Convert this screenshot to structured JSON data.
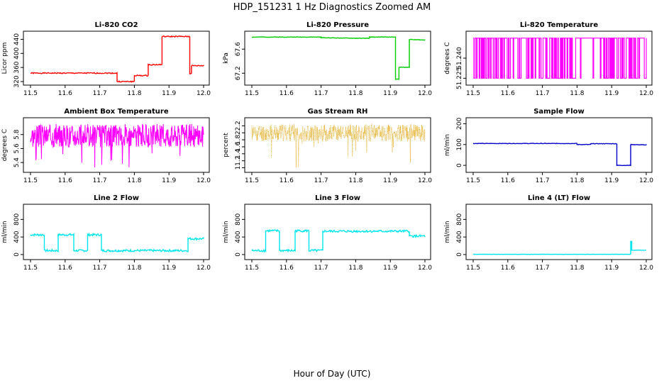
{
  "title": "HDP_151231  1 Hz Diagnostics Zoomed AM",
  "xlabel": "Hour of Day (UTC)",
  "chart_data": [
    {
      "id": "co2",
      "type": "line",
      "title": "Li-820 CO2",
      "ylabel": "Licor ppm",
      "color": "#ff0000",
      "xlim": [
        11.5,
        12.0
      ],
      "xticks": [
        "11.5",
        "11.6",
        "11.7",
        "11.8",
        "11.9",
        "12.0"
      ],
      "ylim": [
        318,
        455
      ],
      "yticks": [
        320,
        360,
        400,
        440
      ],
      "steps": [
        [
          11.5,
          344
        ],
        [
          11.75,
          344
        ],
        [
          11.75,
          320
        ],
        [
          11.8,
          320
        ],
        [
          11.8,
          337
        ],
        [
          11.84,
          337
        ],
        [
          11.84,
          368
        ],
        [
          11.88,
          368
        ],
        [
          11.88,
          448
        ],
        [
          11.96,
          448
        ],
        [
          11.96,
          343
        ],
        [
          11.965,
          343
        ],
        [
          11.965,
          365
        ],
        [
          12.0,
          365
        ]
      ],
      "noise": 1.5
    },
    {
      "id": "pressure",
      "type": "line",
      "title": "Li-820 Pressure",
      "ylabel": "kPa",
      "color": "#00cc00",
      "xlim": [
        11.5,
        12.0
      ],
      "xticks": [
        "11.5",
        "11.6",
        "11.7",
        "11.8",
        "11.9",
        "12.0"
      ],
      "ylim": [
        67.05,
        67.85
      ],
      "yticks": [
        67.2,
        67.6
      ],
      "steps": [
        [
          11.5,
          67.8
        ],
        [
          11.7,
          67.8
        ],
        [
          11.7,
          67.79
        ],
        [
          11.8,
          67.78
        ],
        [
          11.84,
          67.78
        ],
        [
          11.84,
          67.8
        ],
        [
          11.915,
          67.8
        ],
        [
          11.915,
          67.1
        ],
        [
          11.925,
          67.1
        ],
        [
          11.925,
          67.3
        ],
        [
          11.955,
          67.3
        ],
        [
          11.955,
          67.76
        ],
        [
          12.0,
          67.75
        ]
      ],
      "noise": 0.004
    },
    {
      "id": "temperature",
      "type": "line",
      "title": "Li-820 Temperature",
      "ylabel": "degrees C",
      "color": "#ff00ff",
      "xlim": [
        11.5,
        12.0
      ],
      "xticks": [
        "11.5",
        "11.6",
        "11.7",
        "11.8",
        "11.9",
        "12.0"
      ],
      "ylim": [
        51.222,
        51.258
      ],
      "yticks": [
        51.225,
        51.24
      ],
      "ytick_labels": [
        "51.225",
        "51.240"
      ],
      "binary": [
        51.225,
        51.255
      ],
      "density": 0.35,
      "seed": 7
    },
    {
      "id": "ambient",
      "type": "line",
      "title": "Ambient Box Temperature",
      "ylabel": "degrees C",
      "color": "#ff00ff",
      "xlim": [
        11.5,
        12.0
      ],
      "xticks": [
        "11.5",
        "11.6",
        "11.7",
        "11.8",
        "11.9",
        "12.0"
      ],
      "ylim": [
        5.3,
        6.0
      ],
      "yticks": [
        5.4,
        5.6,
        5.8
      ],
      "band": [
        5.62,
        5.95
      ],
      "spike_low": 5.32,
      "seed": 3
    },
    {
      "id": "rh",
      "type": "scatter",
      "title": "Gas Stream RH",
      "ylabel": "percent",
      "color": "#e0a000",
      "xlim": [
        11.5,
        12.0
      ],
      "xticks": [
        "11.5",
        "11.6",
        "11.7",
        "11.8",
        "11.9",
        "12.0"
      ],
      "ylim": [
        0.95,
        2.35
      ],
      "yticks": [
        1.0,
        1.2,
        1.4,
        1.6,
        1.8,
        2.0,
        2.2
      ],
      "band": [
        1.75,
        2.25
      ],
      "spike_low": 1.0,
      "seed": 11
    },
    {
      "id": "sample_flow",
      "type": "line",
      "title": "Sample Flow",
      "ylabel": "ml/min",
      "color": "#0000cc",
      "xlim": [
        11.5,
        12.0
      ],
      "xticks": [
        "11.5",
        "11.6",
        "11.7",
        "11.8",
        "11.9",
        "12.0"
      ],
      "ylim": [
        -20,
        215
      ],
      "yticks": [
        0,
        100,
        200
      ],
      "steps": [
        [
          11.5,
          105
        ],
        [
          11.8,
          105
        ],
        [
          11.8,
          100
        ],
        [
          11.84,
          100
        ],
        [
          11.84,
          104
        ],
        [
          11.915,
          104
        ],
        [
          11.915,
          0
        ],
        [
          11.955,
          0
        ],
        [
          11.955,
          100
        ],
        [
          12.0,
          98
        ]
      ],
      "noise": 1.0
    },
    {
      "id": "line2",
      "type": "line",
      "title": "Line 2 Flow",
      "ylabel": "ml/min",
      "color": "#00e5ee",
      "xlim": [
        11.5,
        12.0
      ],
      "xticks": [
        "11.5",
        "11.6",
        "11.7",
        "11.8",
        "11.9",
        "12.0"
      ],
      "ylim": [
        -50,
        1080
      ],
      "yticks": [
        0,
        400,
        800
      ],
      "steps": [
        [
          11.5,
          450
        ],
        [
          11.54,
          450
        ],
        [
          11.54,
          90
        ],
        [
          11.58,
          90
        ],
        [
          11.58,
          450
        ],
        [
          11.625,
          450
        ],
        [
          11.625,
          90
        ],
        [
          11.665,
          90
        ],
        [
          11.665,
          450
        ],
        [
          11.705,
          450
        ],
        [
          11.705,
          90
        ],
        [
          11.955,
          90
        ],
        [
          11.955,
          360
        ],
        [
          12.0,
          360
        ]
      ],
      "noise": 25
    },
    {
      "id": "line3",
      "type": "line",
      "title": "Line 3 Flow",
      "ylabel": "ml/min",
      "color": "#00e5ee",
      "xlim": [
        11.5,
        12.0
      ],
      "xticks": [
        "11.5",
        "11.6",
        "11.7",
        "11.8",
        "11.9",
        "12.0"
      ],
      "ylim": [
        -50,
        1080
      ],
      "yticks": [
        0,
        400,
        800
      ],
      "steps": [
        [
          11.5,
          90
        ],
        [
          11.54,
          90
        ],
        [
          11.54,
          540
        ],
        [
          11.58,
          540
        ],
        [
          11.58,
          90
        ],
        [
          11.625,
          90
        ],
        [
          11.625,
          540
        ],
        [
          11.665,
          540
        ],
        [
          11.665,
          90
        ],
        [
          11.705,
          90
        ],
        [
          11.705,
          530
        ],
        [
          11.955,
          530
        ],
        [
          11.955,
          420
        ],
        [
          12.0,
          420
        ]
      ],
      "noise": 25
    },
    {
      "id": "line4",
      "type": "line",
      "title": "Line 4 (LT) Flow",
      "ylabel": "ml/min",
      "color": "#00e5ee",
      "xlim": [
        11.5,
        12.0
      ],
      "xticks": [
        "11.5",
        "11.6",
        "11.7",
        "11.8",
        "11.9",
        "12.0"
      ],
      "ylim": [
        -50,
        1080
      ],
      "yticks": [
        0,
        400,
        800
      ],
      "steps": [
        [
          11.5,
          5
        ],
        [
          11.955,
          5
        ],
        [
          11.955,
          300
        ],
        [
          11.958,
          300
        ],
        [
          11.958,
          100
        ],
        [
          12.0,
          100
        ]
      ],
      "noise": 3
    }
  ]
}
